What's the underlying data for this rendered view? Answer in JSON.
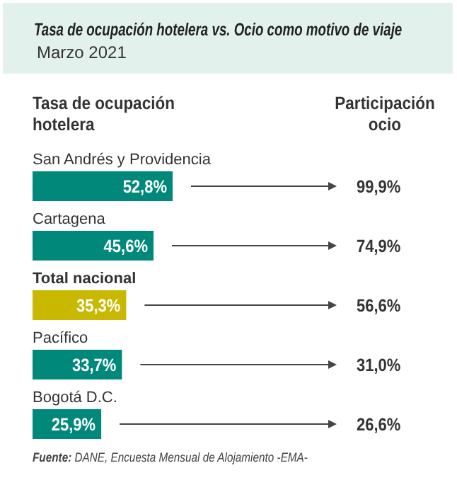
{
  "chart_data": {
    "type": "bar",
    "orientation": "horizontal",
    "title": "Tasa de ocupación hotelera vs. Ocio como motivo de viaje",
    "subtitle": "Marzo 2021",
    "xlabel": "Tasa de ocupación hotelera",
    "categories": [
      "San Andrés y Providencia",
      "Cartagena",
      "Total nacional",
      "Pacífico",
      "Bogotá D.C."
    ],
    "values": [
      52.8,
      45.6,
      35.3,
      33.7,
      25.9
    ],
    "value_labels": [
      "52,8%",
      "45,6%",
      "35,3%",
      "33,7%",
      "25,9%"
    ],
    "colors": [
      "#00897b",
      "#00897b",
      "#c9b800",
      "#00897b",
      "#00897b"
    ],
    "annotations": [
      "Participación ocio",
      "99,9%",
      "74,9%",
      "56,6%",
      "31,0%",
      "26,6%",
      "Fuente: DANE, Encuesta Mensual de Alojamiento -EMA-"
    ],
    "legend": false,
    "grid": false
  }
}
